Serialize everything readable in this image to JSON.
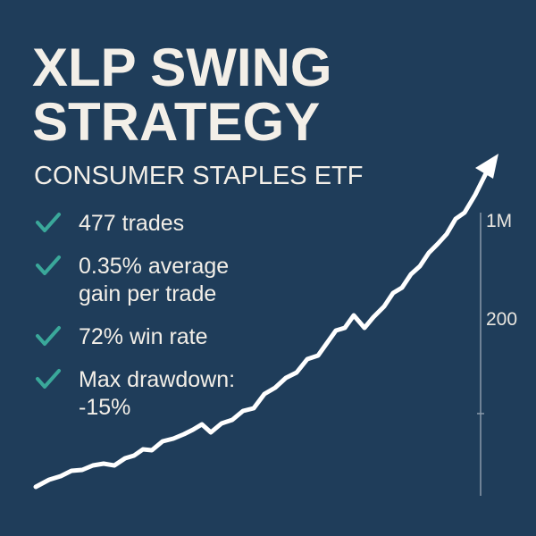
{
  "header": {
    "title_lines": [
      "XLP SWING",
      "STRATEGY"
    ],
    "subtitle": "CONSUMER STAPLES ETF"
  },
  "bullets": [
    {
      "lines": [
        "477 trades"
      ]
    },
    {
      "lines": [
        "0.35% average",
        "gain per trade"
      ]
    },
    {
      "lines": [
        "72% win rate"
      ]
    },
    {
      "lines": [
        "Max drawdown:",
        "-15%"
      ]
    }
  ],
  "axis": {
    "labels": [
      "1M",
      "200"
    ]
  }
}
